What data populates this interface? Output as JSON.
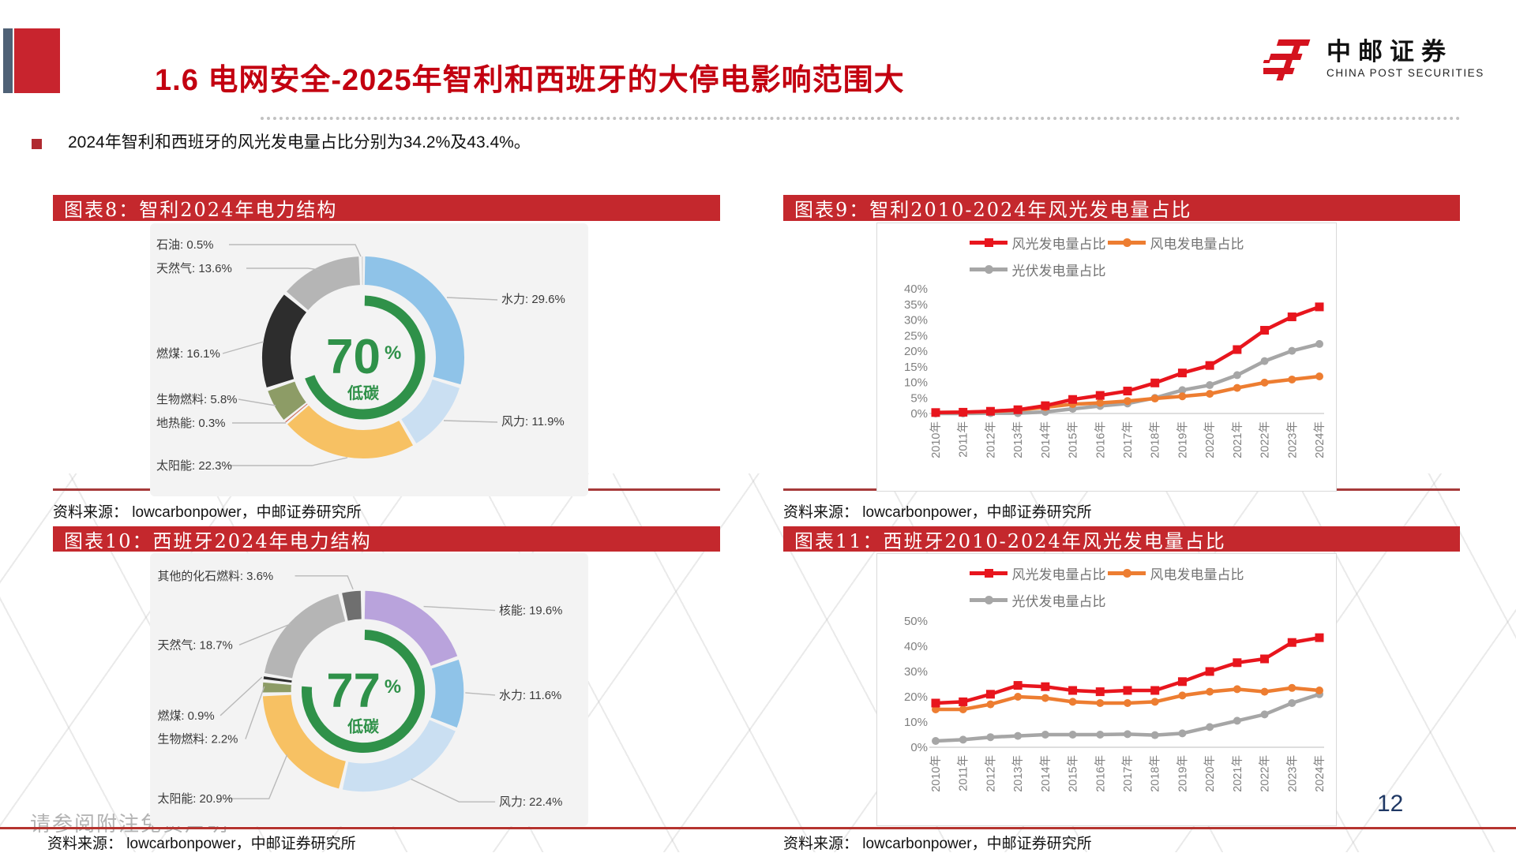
{
  "page": {
    "slide_title": "1.6 电网安全-2025年智利和西班牙的大停电影响范围大",
    "bullet_text": "2024年智利和西班牙的风光发电量占比分别为34.2%及43.4%。",
    "page_number": "12",
    "disclaimer": "请参阅附注免责声明",
    "logo_cn": "中邮证券",
    "logo_en": "CHINA POST SECURITIES"
  },
  "chart_data": [
    {
      "type": "pie",
      "title": "图表8：智利2024年电力结构",
      "source": "资料来源：  lowcarbonpower，中邮证券研究所",
      "center": {
        "value": "70",
        "unit": "%",
        "label": "低碳"
      },
      "low_carbon_pct": 69.9,
      "slices": [
        {
          "name": "水力",
          "pct": 29.6,
          "color": "#8fc3e8",
          "label": "水力: 29.6%"
        },
        {
          "name": "风力",
          "pct": 11.9,
          "color": "#cadff2",
          "label": "风力: 11.9%"
        },
        {
          "name": "太阳能",
          "pct": 22.3,
          "color": "#f7c163",
          "label": "太阳能: 22.3%"
        },
        {
          "name": "地热能",
          "pct": 0.3,
          "color": "#cc6655",
          "label": "地热能: 0.3%"
        },
        {
          "name": "生物燃料",
          "pct": 5.8,
          "color": "#8d9c66",
          "label": "生物燃料: 5.8%"
        },
        {
          "name": "燃煤",
          "pct": 16.1,
          "color": "#2d2d2d",
          "label": "燃煤: 16.1%"
        },
        {
          "name": "天然气",
          "pct": 13.6,
          "color": "#b5b5b5",
          "label": "天然气: 13.6%"
        },
        {
          "name": "石油",
          "pct": 0.5,
          "color": "#dcdcdc",
          "label": "石油: 0.5%"
        }
      ]
    },
    {
      "type": "line",
      "title": "图表9：智利2010-2024年风光发电量占比",
      "source": "资料来源：  lowcarbonpower，中邮证券研究所",
      "categories": [
        "2010年",
        "2011年",
        "2012年",
        "2013年",
        "2014年",
        "2015年",
        "2016年",
        "2017年",
        "2018年",
        "2019年",
        "2020年",
        "2021年",
        "2022年",
        "2023年",
        "2024年"
      ],
      "ylim": [
        0,
        40
      ],
      "y_ticks": [
        40,
        35,
        30,
        25,
        20,
        15,
        10,
        5,
        0
      ],
      "grid": false,
      "legend_position": "top",
      "series": [
        {
          "name": "风光发电量占比",
          "color": "#e8151d",
          "marker": "square",
          "values": [
            0.3,
            0.4,
            0.7,
            1.2,
            2.5,
            4.5,
            5.8,
            7.2,
            9.8,
            13.0,
            15.4,
            20.5,
            26.7,
            31.0,
            34.2
          ]
        },
        {
          "name": "风电发电量占比",
          "color": "#ed7d31",
          "marker": "circle",
          "values": [
            0.3,
            0.4,
            0.6,
            1.1,
            2.0,
            3.0,
            3.4,
            4.0,
            4.8,
            5.5,
            6.3,
            8.2,
            9.9,
            10.9,
            11.9
          ]
        },
        {
          "name": "光伏发电量占比",
          "color": "#a6a6a6",
          "marker": "circle",
          "values": [
            0.0,
            0.0,
            0.1,
            0.1,
            0.5,
            1.5,
            2.4,
            3.2,
            5.0,
            7.5,
            9.1,
            12.3,
            16.8,
            20.1,
            22.3
          ]
        }
      ]
    },
    {
      "type": "pie",
      "title": "图表10：西班牙2024年电力结构",
      "source": "资料来源：  lowcarbonpower，中邮证券研究所",
      "center": {
        "value": "77",
        "unit": "%",
        "label": "低碳"
      },
      "low_carbon_pct": 76.7,
      "slices": [
        {
          "name": "核能",
          "pct": 19.6,
          "color": "#b9a3dc",
          "label": "核能: 19.6%"
        },
        {
          "name": "水力",
          "pct": 11.6,
          "color": "#8fc3e8",
          "label": "水力: 11.6%"
        },
        {
          "name": "风力",
          "pct": 22.4,
          "color": "#cadff2",
          "label": "风力: 22.4%"
        },
        {
          "name": "太阳能",
          "pct": 20.9,
          "color": "#f7c163",
          "label": "太阳能: 20.9%"
        },
        {
          "name": "生物燃料",
          "pct": 2.2,
          "color": "#8d9c66",
          "label": "生物燃料: 2.2%"
        },
        {
          "name": "燃煤",
          "pct": 0.9,
          "color": "#2d2d2d",
          "label": "燃煤: 0.9%"
        },
        {
          "name": "天然气",
          "pct": 18.7,
          "color": "#b5b5b5",
          "label": "天然气: 18.7%"
        },
        {
          "name": "其他的化石燃料",
          "pct": 3.6,
          "color": "#6f6f6f",
          "label": "其他的化石燃料: 3.6%"
        }
      ]
    },
    {
      "type": "line",
      "title": "图表11：西班牙2010-2024年风光发电量占比",
      "source": "资料来源：  lowcarbonpower，中邮证券研究所",
      "categories": [
        "2010年",
        "2011年",
        "2012年",
        "2013年",
        "2014年",
        "2015年",
        "2016年",
        "2017年",
        "2018年",
        "2019年",
        "2020年",
        "2021年",
        "2022年",
        "2023年",
        "2024年"
      ],
      "ylim": [
        0,
        50
      ],
      "y_ticks": [
        50,
        40,
        30,
        20,
        10,
        0
      ],
      "grid": false,
      "legend_position": "top",
      "series": [
        {
          "name": "风光发电量占比",
          "color": "#e8151d",
          "marker": "square",
          "values": [
            17.5,
            18.0,
            21.0,
            24.5,
            24.0,
            22.5,
            22.0,
            22.5,
            22.5,
            26.0,
            30.0,
            33.5,
            35.0,
            41.5,
            43.4
          ]
        },
        {
          "name": "风电发电量占比",
          "color": "#ed7d31",
          "marker": "circle",
          "values": [
            15.0,
            15.0,
            17.0,
            20.0,
            19.5,
            18.0,
            17.5,
            17.5,
            18.0,
            20.5,
            22.0,
            23.0,
            22.0,
            23.5,
            22.5
          ]
        },
        {
          "name": "光伏发电量占比",
          "color": "#a6a6a6",
          "marker": "circle",
          "values": [
            2.5,
            3.0,
            4.0,
            4.5,
            5.0,
            5.0,
            5.0,
            5.2,
            4.8,
            5.5,
            8.0,
            10.5,
            13.0,
            17.5,
            21.0
          ]
        }
      ]
    }
  ]
}
